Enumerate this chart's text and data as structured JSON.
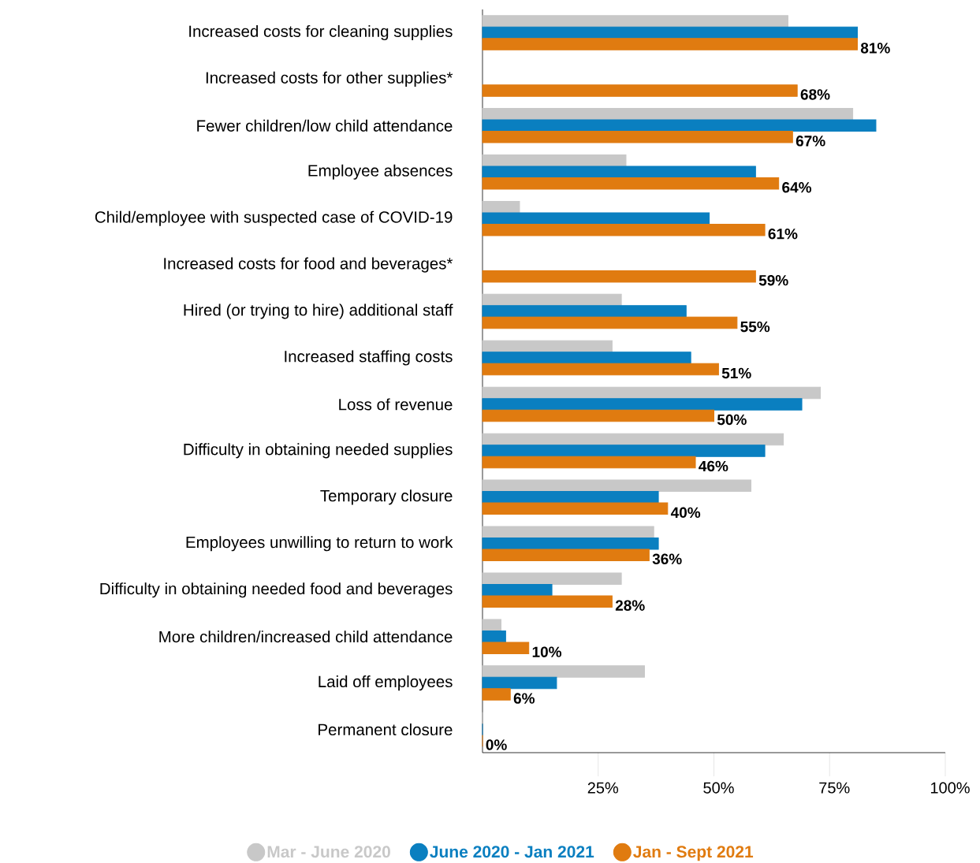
{
  "chart_data": {
    "type": "bar",
    "orientation": "horizontal",
    "categories": [
      "Increased costs for cleaning supplies",
      "Increased costs for other supplies*",
      "Fewer children/low child attendance",
      "Employee absences",
      "Child/employee with suspected case of COVID-19",
      "Increased costs for food and beverages*",
      "Hired (or trying to hire) additional staff",
      "Increased staffing costs",
      "Loss of revenue",
      "Difficulty in obtaining needed supplies",
      "Temporary closure",
      "Employees unwilling to return to work",
      "Difficulty in obtaining needed food and beverages",
      "More children/increased child attendance",
      "Laid off employees",
      "Permanent closure"
    ],
    "series": [
      {
        "name": "Mar - June 2020",
        "color": "#c8c8c8",
        "values": [
          66,
          null,
          80,
          31,
          8,
          null,
          30,
          28,
          73,
          65,
          58,
          37,
          30,
          4,
          35,
          0
        ]
      },
      {
        "name": "June 2020 - Jan 2021",
        "color": "#0a7fc0",
        "values": [
          81,
          null,
          85,
          59,
          49,
          null,
          44,
          45,
          69,
          61,
          38,
          38,
          15,
          5,
          16,
          0
        ]
      },
      {
        "name": "Jan - Sept 2021",
        "color": "#e07b10",
        "values": [
          81,
          68,
          67,
          64,
          61,
          59,
          55,
          51,
          50,
          46,
          40,
          36,
          28,
          10,
          6,
          0
        ],
        "value_labels": [
          "81%",
          "68%",
          "67%",
          "64%",
          "61%",
          "59%",
          "55%",
          "51%",
          "50%",
          "46%",
          "40%",
          "36%",
          "28%",
          "10%",
          "6%",
          "0%"
        ]
      }
    ],
    "xlim": [
      0,
      100
    ],
    "xticks": [
      {
        "value": 25,
        "label": "25%"
      },
      {
        "value": 50,
        "label": "50%"
      },
      {
        "value": 75,
        "label": "75%"
      },
      {
        "value": 100,
        "label": "100%"
      }
    ],
    "grid": false,
    "legend": "bottom"
  }
}
